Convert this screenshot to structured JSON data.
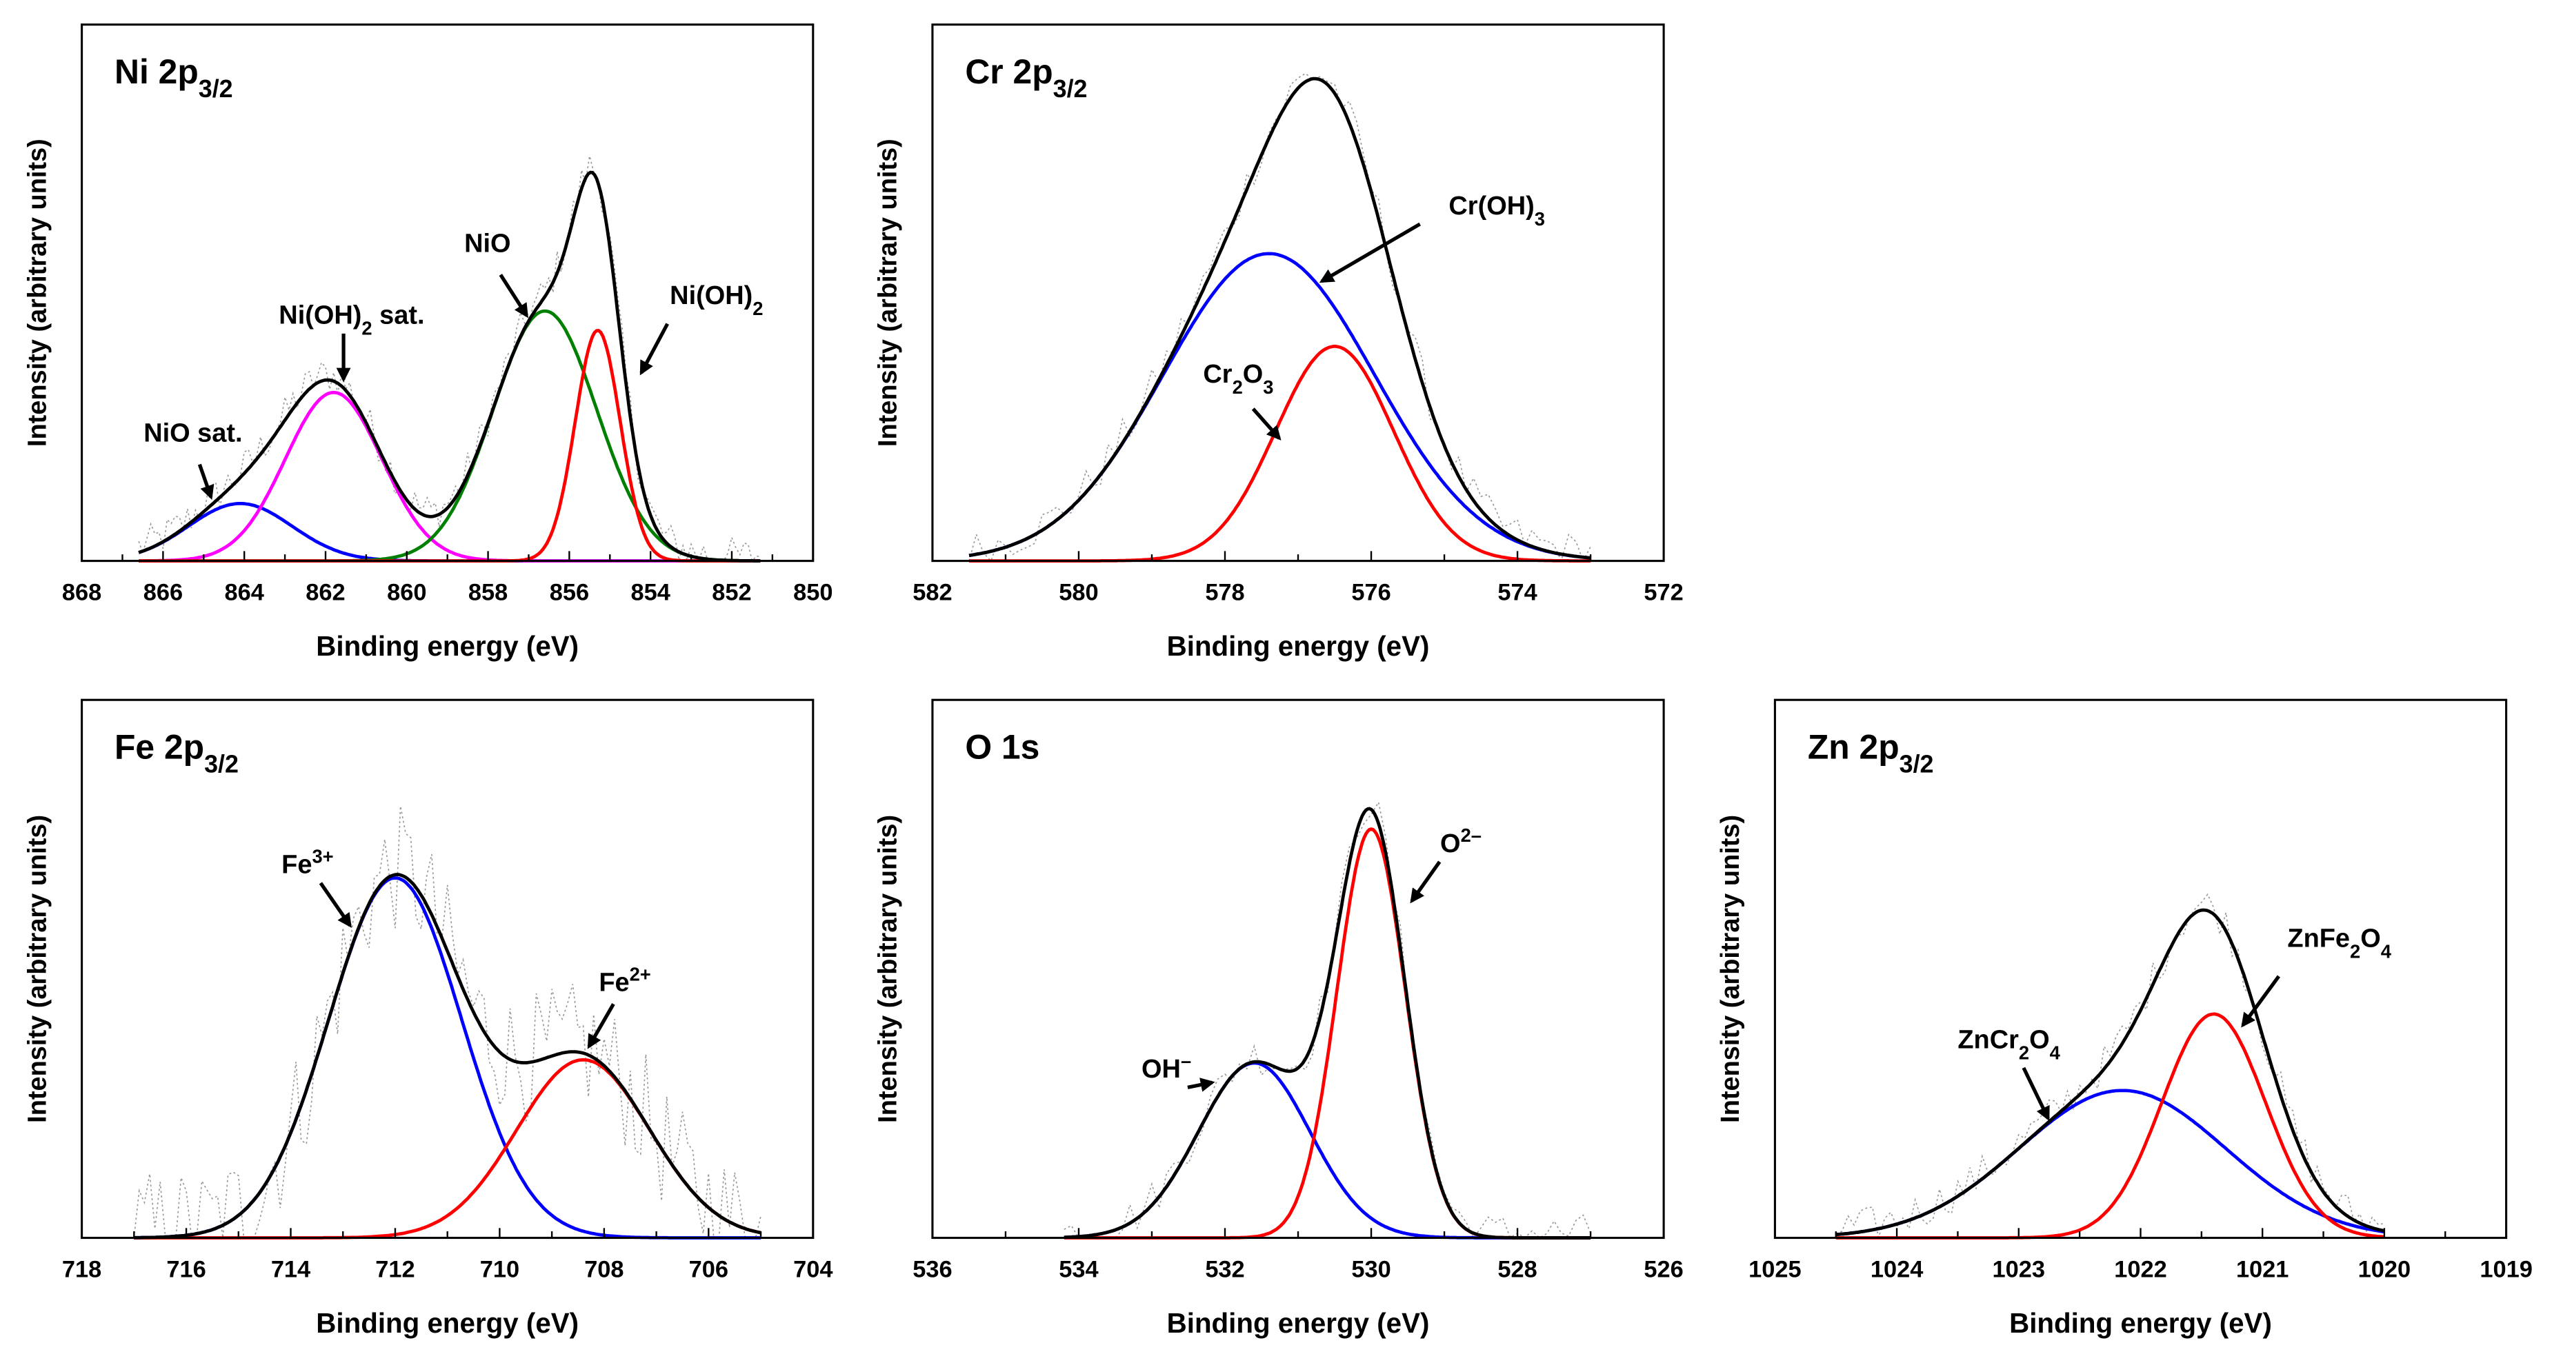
{
  "chart_data": [
    {
      "type": "line",
      "title": "Ni 2p3/2",
      "title_parts": [
        {
          "t": "Ni 2p"
        },
        {
          "t": "3/2",
          "s": "sub"
        }
      ],
      "xlabel": "Binding energy (eV)",
      "ylabel": "Intensity (arbitrary units)",
      "xlim": [
        868,
        850
      ],
      "x_ticks": [
        "868",
        "866",
        "864",
        "862",
        "860",
        "858",
        "856",
        "854",
        "852",
        "850"
      ],
      "x_tick_values": [
        868,
        866,
        864,
        862,
        860,
        858,
        856,
        854,
        852,
        850
      ],
      "ylim": [
        0,
        1
      ],
      "data_range": [
        866.6,
        851.3
      ],
      "envelope_color": "#000000",
      "components": [
        {
          "name": "NiO sat.",
          "center": 864.1,
          "amplitude": 0.107,
          "fwhm": 3.0,
          "color": "#0000ff"
        },
        {
          "name": "Ni(OH)2 sat.",
          "center": 861.8,
          "amplitude": 0.314,
          "fwhm": 2.8,
          "color": "#ff00ff"
        },
        {
          "name": "NiO",
          "center": 856.6,
          "amplitude": 0.466,
          "fwhm": 3.0,
          "color": "#008000"
        },
        {
          "name": "Ni(OH)2",
          "center": 855.3,
          "amplitude": 0.43,
          "fwhm": 1.3,
          "color": "#ff0000"
        }
      ],
      "annotations": [
        {
          "parts": [
            {
              "t": "NiO sat."
            }
          ]
        },
        {
          "parts": [
            {
              "t": "Ni(OH)"
            },
            {
              "t": "2",
              "s": "sub"
            },
            {
              "t": " sat."
            }
          ]
        },
        {
          "parts": [
            {
              "t": "NiO"
            }
          ]
        },
        {
          "parts": [
            {
              "t": "Ni(OH)"
            },
            {
              "t": "2",
              "s": "sub"
            }
          ]
        }
      ]
    },
    {
      "type": "line",
      "title": "Cr 2p3/2",
      "title_parts": [
        {
          "t": "Cr 2p"
        },
        {
          "t": "3/2",
          "s": "sub"
        }
      ],
      "xlabel": "Binding energy (eV)",
      "ylabel": "Intensity (arbitrary units)",
      "xlim": [
        582,
        572
      ],
      "x_ticks": [
        "582",
        "580",
        "578",
        "576",
        "574",
        "572"
      ],
      "x_tick_values": [
        582,
        580,
        578,
        576,
        574,
        572
      ],
      "ylim": [
        0,
        1
      ],
      "data_range": [
        581.5,
        573.0
      ],
      "envelope_color": "#000000",
      "components": [
        {
          "name": "Cr(OH)3",
          "center": 577.4,
          "amplitude": 0.573,
          "fwhm": 3.4,
          "color": "#0000ff"
        },
        {
          "name": "Cr2O3",
          "center": 576.5,
          "amplitude": 0.4,
          "fwhm": 1.9,
          "color": "#ff0000"
        }
      ],
      "annotations": [
        {
          "parts": [
            {
              "t": "Cr(OH)"
            },
            {
              "t": "3",
              "s": "sub"
            }
          ]
        },
        {
          "parts": [
            {
              "t": "Cr"
            },
            {
              "t": "2",
              "s": "sub"
            },
            {
              "t": "O"
            },
            {
              "t": "3",
              "s": "sub"
            }
          ]
        }
      ]
    },
    {
      "type": "line",
      "title": "Fe 2p3/2",
      "title_parts": [
        {
          "t": "Fe 2p"
        },
        {
          "t": "3/2",
          "s": "sub"
        }
      ],
      "xlabel": "Binding energy (eV)",
      "ylabel": "Intensity (arbitrary units)",
      "xlim": [
        718,
        704
      ],
      "x_ticks": [
        "718",
        "716",
        "714",
        "712",
        "710",
        "708",
        "706",
        "704"
      ],
      "x_tick_values": [
        718,
        716,
        714,
        712,
        710,
        708,
        706,
        704
      ],
      "ylim": [
        0,
        1
      ],
      "data_range": [
        717.0,
        705.0
      ],
      "envelope_color": "#000000",
      "components": [
        {
          "name": "Fe3+",
          "center": 712.0,
          "amplitude": 0.669,
          "fwhm": 3.0,
          "color": "#0000ff"
        },
        {
          "name": "Fe2+",
          "center": 708.4,
          "amplitude": 0.331,
          "fwhm": 3.0,
          "color": "#ff0000"
        }
      ],
      "annotations": [
        {
          "parts": [
            {
              "t": "Fe"
            },
            {
              "t": "3+",
              "s": "sup"
            }
          ]
        },
        {
          "parts": [
            {
              "t": "Fe"
            },
            {
              "t": "2+",
              "s": "sup"
            }
          ]
        }
      ]
    },
    {
      "type": "line",
      "title": "O 1s",
      "title_parts": [
        {
          "t": "O 1s"
        }
      ],
      "xlabel": "Binding energy (eV)",
      "ylabel": "Intensity (arbitrary units)",
      "xlim": [
        536,
        526
      ],
      "x_ticks": [
        "536",
        "534",
        "532",
        "530",
        "528",
        "526"
      ],
      "x_tick_values": [
        536,
        534,
        532,
        530,
        528,
        526
      ],
      "ylim": [
        0,
        1
      ],
      "data_range": [
        534.2,
        527.0
      ],
      "envelope_color": "#000000",
      "components": [
        {
          "name": "OH–",
          "center": 531.6,
          "amplitude": 0.325,
          "fwhm": 1.8,
          "color": "#0000ff"
        },
        {
          "name": "O2–",
          "center": 530.0,
          "amplitude": 0.76,
          "fwhm": 1.1,
          "color": "#ff0000"
        }
      ],
      "annotations": [
        {
          "parts": [
            {
              "t": "O"
            },
            {
              "t": "2–",
              "s": "sup"
            }
          ]
        },
        {
          "parts": [
            {
              "t": "OH"
            },
            {
              "t": "–",
              "s": "sup"
            }
          ]
        }
      ]
    },
    {
      "type": "line",
      "title": "Zn 2p3/2",
      "title_parts": [
        {
          "t": "Zn 2p"
        },
        {
          "t": "3/2",
          "s": "sub"
        }
      ],
      "xlabel": "Binding energy (eV)",
      "ylabel": "Intensity (arbitrary units)",
      "xlim": [
        1025,
        1019
      ],
      "x_ticks": [
        "1025",
        "1024",
        "1023",
        "1022",
        "1021",
        "1020",
        "1019"
      ],
      "x_tick_values": [
        1025,
        1024,
        1023,
        1022,
        1021,
        1020,
        1019
      ],
      "ylim": [
        0,
        1
      ],
      "data_range": [
        1024.5,
        1020.0
      ],
      "envelope_color": "#000000",
      "components": [
        {
          "name": "ZnCr2O4",
          "center": 1022.15,
          "amplitude": 0.274,
          "fwhm": 2.0,
          "color": "#0000ff"
        },
        {
          "name": "ZnFe2O4",
          "center": 1021.4,
          "amplitude": 0.416,
          "fwhm": 1.0,
          "color": "#ff0000"
        }
      ],
      "annotations": [
        {
          "parts": [
            {
              "t": "ZnCr"
            },
            {
              "t": "2",
              "s": "sub"
            },
            {
              "t": "O"
            },
            {
              "t": "4",
              "s": "sub"
            }
          ]
        },
        {
          "parts": [
            {
              "t": "ZnFe"
            },
            {
              "t": "2",
              "s": "sub"
            },
            {
              "t": "O"
            },
            {
              "t": "4",
              "s": "sub"
            }
          ]
        }
      ]
    }
  ]
}
